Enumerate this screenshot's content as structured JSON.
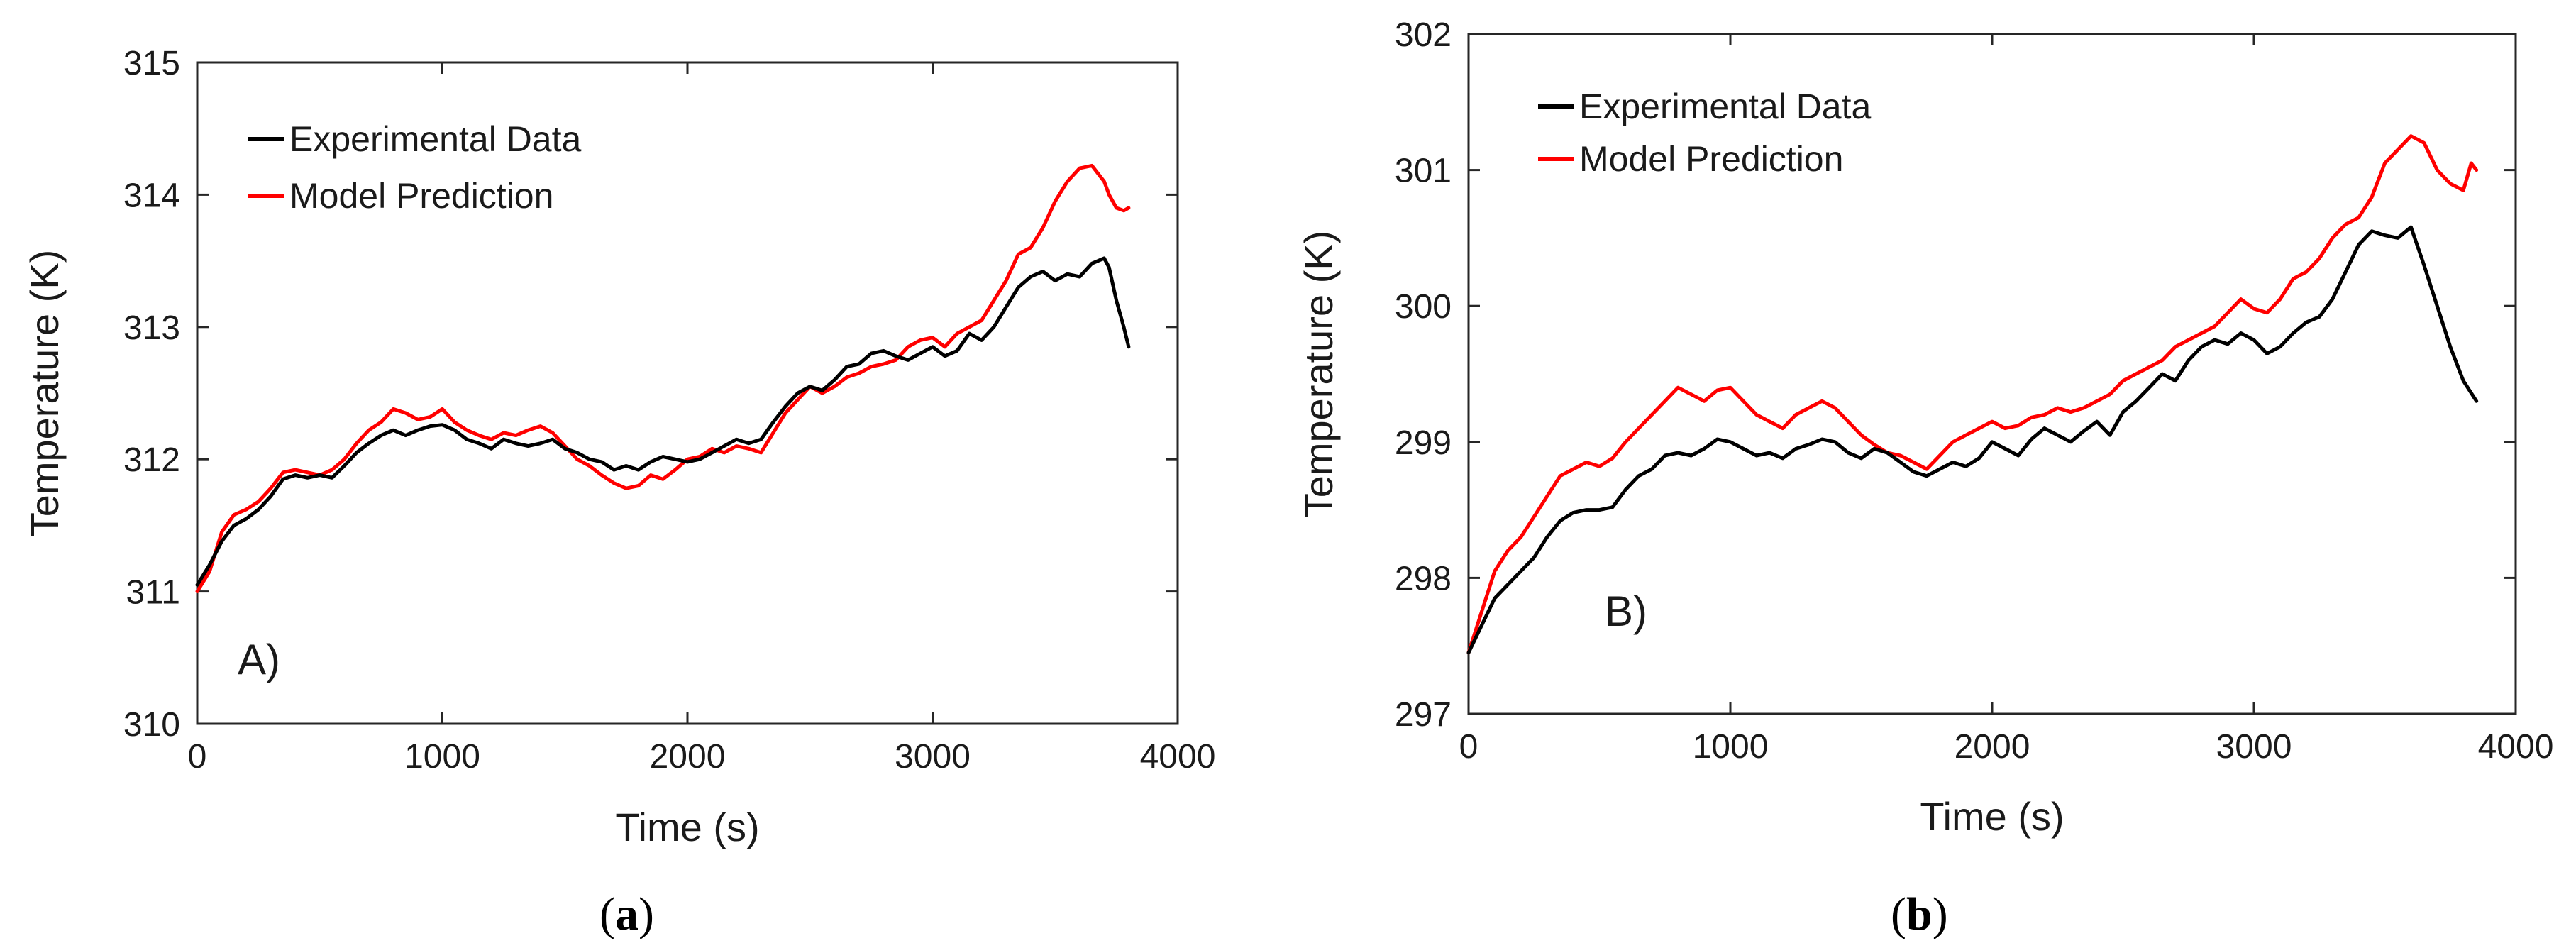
{
  "chart_data": [
    {
      "id": "a",
      "type": "line",
      "annotation": "A)",
      "caption_open": "(",
      "caption_letter": "a",
      "caption_close": ")",
      "xlabel": "Time (s)",
      "ylabel": "Temperature (K)",
      "xlim": [
        0,
        4000
      ],
      "ylim": [
        310,
        315
      ],
      "xticks": [
        0,
        1000,
        2000,
        3000,
        4000
      ],
      "yticks": [
        310,
        311,
        312,
        313,
        314,
        315
      ],
      "legend_position": "top-left",
      "series": [
        {
          "name": "Experimental Data",
          "color": "#000000",
          "x": [
            0,
            50,
            100,
            150,
            200,
            250,
            300,
            350,
            400,
            450,
            500,
            550,
            600,
            650,
            700,
            750,
            800,
            850,
            900,
            950,
            1000,
            1050,
            1100,
            1150,
            1200,
            1250,
            1300,
            1350,
            1400,
            1450,
            1500,
            1550,
            1600,
            1650,
            1700,
            1750,
            1800,
            1850,
            1900,
            1950,
            2000,
            2050,
            2100,
            2150,
            2200,
            2250,
            2300,
            2350,
            2400,
            2450,
            2500,
            2550,
            2600,
            2650,
            2700,
            2750,
            2800,
            2850,
            2900,
            2950,
            3000,
            3050,
            3100,
            3150,
            3200,
            3250,
            3300,
            3350,
            3400,
            3450,
            3500,
            3550,
            3600,
            3650,
            3700,
            3720,
            3750,
            3780,
            3800
          ],
          "y": [
            311.05,
            311.2,
            311.38,
            311.5,
            311.55,
            311.62,
            311.72,
            311.85,
            311.88,
            311.86,
            311.88,
            311.86,
            311.95,
            312.05,
            312.12,
            312.18,
            312.22,
            312.18,
            312.22,
            312.25,
            312.26,
            312.22,
            312.15,
            312.12,
            312.08,
            312.15,
            312.12,
            312.1,
            312.12,
            312.15,
            312.08,
            312.05,
            312.0,
            311.98,
            311.92,
            311.95,
            311.92,
            311.98,
            312.02,
            312.0,
            311.98,
            312.0,
            312.05,
            312.1,
            312.15,
            312.12,
            312.15,
            312.28,
            312.4,
            312.5,
            312.55,
            312.52,
            312.6,
            312.7,
            312.72,
            312.8,
            312.82,
            312.78,
            312.75,
            312.8,
            312.85,
            312.78,
            312.82,
            312.95,
            312.9,
            313.0,
            313.15,
            313.3,
            313.38,
            313.42,
            313.35,
            313.4,
            313.38,
            313.48,
            313.52,
            313.45,
            313.2,
            313.0,
            312.85
          ]
        },
        {
          "name": "Model Prediction",
          "color": "#ff0000",
          "x": [
            0,
            50,
            100,
            150,
            200,
            250,
            300,
            350,
            400,
            450,
            500,
            550,
            600,
            650,
            700,
            750,
            800,
            850,
            900,
            950,
            1000,
            1050,
            1100,
            1150,
            1200,
            1250,
            1300,
            1350,
            1400,
            1450,
            1500,
            1550,
            1600,
            1650,
            1700,
            1750,
            1800,
            1850,
            1900,
            1950,
            2000,
            2050,
            2100,
            2150,
            2200,
            2250,
            2300,
            2350,
            2400,
            2450,
            2500,
            2550,
            2600,
            2650,
            2700,
            2750,
            2800,
            2850,
            2900,
            2950,
            3000,
            3050,
            3100,
            3150,
            3200,
            3250,
            3300,
            3350,
            3400,
            3450,
            3500,
            3550,
            3600,
            3650,
            3700,
            3720,
            3750,
            3780,
            3800
          ],
          "y": [
            311.0,
            311.15,
            311.45,
            311.58,
            311.62,
            311.68,
            311.78,
            311.9,
            311.92,
            311.9,
            311.88,
            311.92,
            312.0,
            312.12,
            312.22,
            312.28,
            312.38,
            312.35,
            312.3,
            312.32,
            312.38,
            312.28,
            312.22,
            312.18,
            312.15,
            312.2,
            312.18,
            312.22,
            312.25,
            312.2,
            312.1,
            312.0,
            311.95,
            311.88,
            311.82,
            311.78,
            311.8,
            311.88,
            311.85,
            311.92,
            312.0,
            312.02,
            312.08,
            312.05,
            312.1,
            312.08,
            312.05,
            312.2,
            312.35,
            312.45,
            312.55,
            312.5,
            312.55,
            312.62,
            312.65,
            312.7,
            312.72,
            312.75,
            312.85,
            312.9,
            312.92,
            312.85,
            312.95,
            313.0,
            313.05,
            313.2,
            313.35,
            313.55,
            313.6,
            313.75,
            313.95,
            314.1,
            314.2,
            314.22,
            314.1,
            314.0,
            313.9,
            313.88,
            313.9
          ]
        }
      ]
    },
    {
      "id": "b",
      "type": "line",
      "annotation": "B)",
      "caption_open": "(",
      "caption_letter": "b",
      "caption_close": ")",
      "xlabel": "Time (s)",
      "ylabel": "Temperature (K)",
      "xlim": [
        0,
        4000
      ],
      "ylim": [
        297,
        302
      ],
      "xticks": [
        0,
        1000,
        2000,
        3000,
        4000
      ],
      "yticks": [
        297,
        298,
        299,
        300,
        301,
        302
      ],
      "legend_position": "top-left",
      "series": [
        {
          "name": "Experimental Data",
          "color": "#000000",
          "x": [
            0,
            50,
            100,
            150,
            200,
            250,
            300,
            350,
            400,
            450,
            500,
            550,
            600,
            650,
            700,
            750,
            800,
            850,
            900,
            950,
            1000,
            1050,
            1100,
            1150,
            1200,
            1250,
            1300,
            1350,
            1400,
            1450,
            1500,
            1550,
            1600,
            1650,
            1700,
            1750,
            1800,
            1850,
            1900,
            1950,
            2000,
            2050,
            2100,
            2150,
            2200,
            2250,
            2300,
            2350,
            2400,
            2450,
            2500,
            2550,
            2600,
            2650,
            2700,
            2750,
            2800,
            2850,
            2900,
            2950,
            3000,
            3050,
            3100,
            3150,
            3200,
            3250,
            3300,
            3350,
            3400,
            3450,
            3500,
            3550,
            3600,
            3650,
            3700,
            3750,
            3800,
            3850
          ],
          "y": [
            297.45,
            297.65,
            297.85,
            297.95,
            298.05,
            298.15,
            298.3,
            298.42,
            298.48,
            298.5,
            298.5,
            298.52,
            298.65,
            298.75,
            298.8,
            298.9,
            298.92,
            298.9,
            298.95,
            299.02,
            299.0,
            298.95,
            298.9,
            298.92,
            298.88,
            298.95,
            298.98,
            299.02,
            299.0,
            298.92,
            298.88,
            298.95,
            298.92,
            298.85,
            298.78,
            298.75,
            298.8,
            298.85,
            298.82,
            298.88,
            299.0,
            298.95,
            298.9,
            299.02,
            299.1,
            299.05,
            299.0,
            299.08,
            299.15,
            299.05,
            299.22,
            299.3,
            299.4,
            299.5,
            299.45,
            299.6,
            299.7,
            299.75,
            299.72,
            299.8,
            299.75,
            299.65,
            299.7,
            299.8,
            299.88,
            299.92,
            300.05,
            300.25,
            300.45,
            300.55,
            300.52,
            300.5,
            300.58,
            300.3,
            300.0,
            299.7,
            299.45,
            299.3
          ]
        },
        {
          "name": "Model Prediction",
          "color": "#ff0000",
          "x": [
            0,
            50,
            100,
            150,
            200,
            250,
            300,
            350,
            400,
            450,
            500,
            550,
            600,
            650,
            700,
            750,
            800,
            850,
            900,
            950,
            1000,
            1050,
            1100,
            1150,
            1200,
            1250,
            1300,
            1350,
            1400,
            1450,
            1500,
            1550,
            1600,
            1650,
            1700,
            1750,
            1800,
            1850,
            1900,
            1950,
            2000,
            2050,
            2100,
            2150,
            2200,
            2250,
            2300,
            2350,
            2400,
            2450,
            2500,
            2550,
            2600,
            2650,
            2700,
            2750,
            2800,
            2850,
            2900,
            2950,
            3000,
            3050,
            3100,
            3150,
            3200,
            3250,
            3300,
            3350,
            3400,
            3450,
            3500,
            3550,
            3600,
            3650,
            3700,
            3750,
            3800,
            3830,
            3850
          ],
          "y": [
            297.45,
            297.75,
            298.05,
            298.2,
            298.3,
            298.45,
            298.6,
            298.75,
            298.8,
            298.85,
            298.82,
            298.88,
            299.0,
            299.1,
            299.2,
            299.3,
            299.4,
            299.35,
            299.3,
            299.38,
            299.4,
            299.3,
            299.2,
            299.15,
            299.1,
            299.2,
            299.25,
            299.3,
            299.25,
            299.15,
            299.05,
            298.98,
            298.92,
            298.9,
            298.85,
            298.8,
            298.9,
            299.0,
            299.05,
            299.1,
            299.15,
            299.1,
            299.12,
            299.18,
            299.2,
            299.25,
            299.22,
            299.25,
            299.3,
            299.35,
            299.45,
            299.5,
            299.55,
            299.6,
            299.7,
            299.75,
            299.8,
            299.85,
            299.95,
            300.05,
            299.98,
            299.95,
            300.05,
            300.2,
            300.25,
            300.35,
            300.5,
            300.6,
            300.65,
            300.8,
            301.05,
            301.15,
            301.25,
            301.2,
            301.0,
            300.9,
            300.85,
            301.05,
            301.0
          ]
        }
      ]
    }
  ]
}
